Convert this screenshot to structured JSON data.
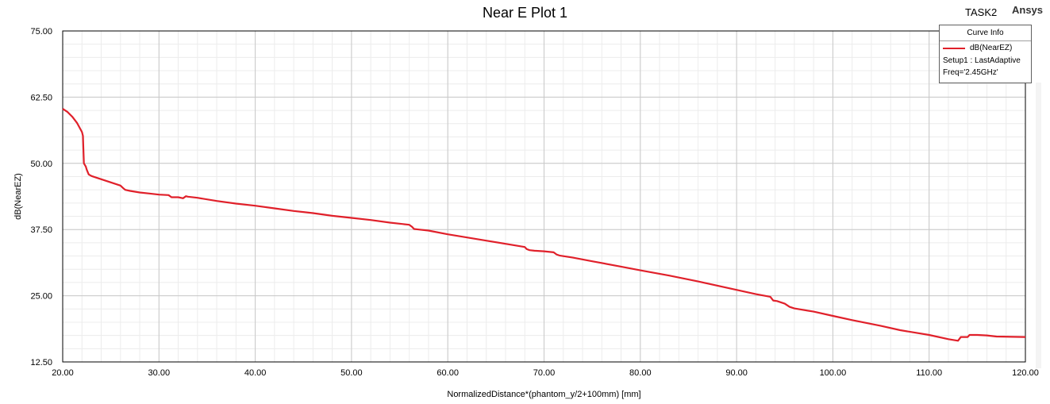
{
  "header": {
    "title": "Near E Plot 1",
    "project": "TASK2",
    "brand": "Ansys"
  },
  "legend": {
    "title": "Curve Info",
    "series_name": "dB(NearEZ)",
    "line1": "Setup1 : LastAdaptive",
    "line2": "Freq='2.45GHz'"
  },
  "colors": {
    "series": "#e0202a",
    "major_grid": "#c8c8c8",
    "minor_grid": "#ececec"
  },
  "chart_data": {
    "type": "line",
    "title": "Near E Plot 1",
    "xlabel": "NormalizedDistance*(phantom_y/2+100mm) [mm]",
    "ylabel": "dB(NearEZ)",
    "xlim": [
      20,
      120
    ],
    "ylim": [
      12.5,
      75
    ],
    "xticks": [
      "20.00",
      "30.00",
      "40.00",
      "50.00",
      "60.00",
      "70.00",
      "80.00",
      "90.00",
      "100.00",
      "110.00",
      "120.00"
    ],
    "yticks": [
      "12.50",
      "25.00",
      "37.50",
      "50.00",
      "62.50",
      "75.00"
    ],
    "grid": true,
    "legend_position": "top-right",
    "series": [
      {
        "name": "dB(NearEZ)",
        "x": [
          20.0,
          20.5,
          21.0,
          21.5,
          22.0,
          22.1,
          22.2,
          22.4,
          22.5,
          22.7,
          23.0,
          24.0,
          25.0,
          26.0,
          26.3,
          26.5,
          27.0,
          28.0,
          29.0,
          30.0,
          31.0,
          31.3,
          32.0,
          32.5,
          32.8,
          33.0,
          34.0,
          36.0,
          38.0,
          40.0,
          42.0,
          44.0,
          46.0,
          48.0,
          50.0,
          52.0,
          54.0,
          56.0,
          56.3,
          56.5,
          57.0,
          58.0,
          60.0,
          62.0,
          64.0,
          66.0,
          68.0,
          68.2,
          68.5,
          69.0,
          70.0,
          71.0,
          71.3,
          71.6,
          73.0,
          75.0,
          78.0,
          80.0,
          83.0,
          86.0,
          89.0,
          92.0,
          93.5,
          93.8,
          94.2,
          95.0,
          95.5,
          96.0,
          98.0,
          100.0,
          102.0,
          105.0,
          107.0,
          110.0,
          112.0,
          113.0,
          113.3,
          113.6,
          114.0,
          114.2,
          114.6,
          115.0,
          116.0,
          117.0,
          120.0
        ],
        "y": [
          60.3,
          59.7,
          58.8,
          57.6,
          55.9,
          55.2,
          50.0,
          49.4,
          48.8,
          47.9,
          47.6,
          47.0,
          46.4,
          45.8,
          45.3,
          45.0,
          44.8,
          44.5,
          44.3,
          44.1,
          44.0,
          43.6,
          43.6,
          43.4,
          43.8,
          43.7,
          43.5,
          42.9,
          42.4,
          42.0,
          41.5,
          41.0,
          40.6,
          40.1,
          39.7,
          39.3,
          38.8,
          38.4,
          38.0,
          37.6,
          37.5,
          37.3,
          36.6,
          36.0,
          35.4,
          34.8,
          34.2,
          33.8,
          33.6,
          33.5,
          33.4,
          33.2,
          32.8,
          32.6,
          32.2,
          31.5,
          30.5,
          29.8,
          28.8,
          27.7,
          26.5,
          25.3,
          24.8,
          24.1,
          24.0,
          23.5,
          22.9,
          22.6,
          22.0,
          21.2,
          20.4,
          19.3,
          18.5,
          17.6,
          16.8,
          16.5,
          17.2,
          17.2,
          17.2,
          17.6,
          17.6,
          17.6,
          17.5,
          17.3,
          17.2
        ]
      }
    ]
  }
}
